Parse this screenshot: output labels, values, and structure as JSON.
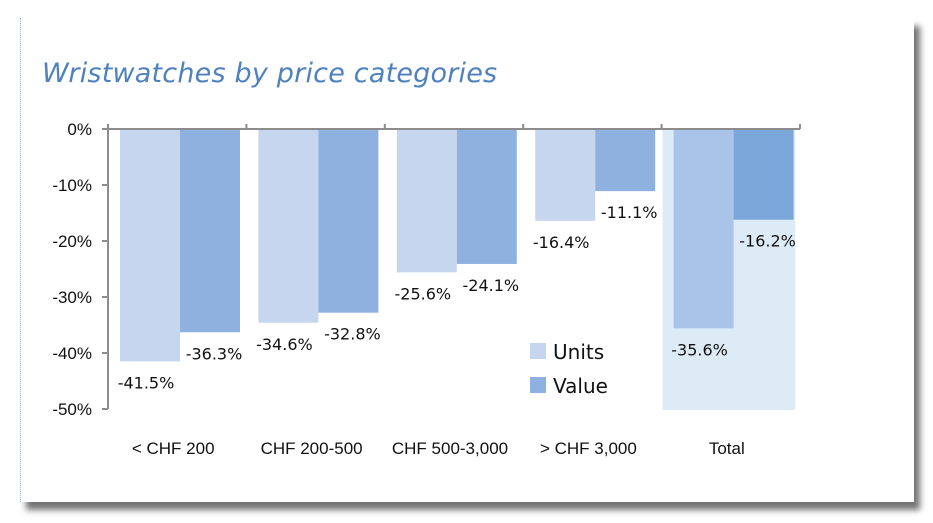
{
  "chart_data": {
    "type": "bar",
    "title": "Wristwatches by price categories",
    "categories": [
      "< CHF 200",
      "CHF 200-500",
      "CHF 500-3,000",
      "> CHF 3,000",
      "Total"
    ],
    "series": [
      {
        "name": "Units",
        "values": [
          -41.5,
          -34.6,
          -25.6,
          -16.4,
          -35.6
        ],
        "color": "#c6d6ee"
      },
      {
        "name": "Value",
        "values": [
          -36.3,
          -32.8,
          -24.1,
          -11.1,
          -16.2
        ],
        "color": "#8eb1df"
      }
    ],
    "data_labels": {
      "Units": [
        "-41.5%",
        "-34.6%",
        "-25.6%",
        "-16.4%",
        "-35.6%"
      ],
      "Value": [
        "-36.3%",
        "-32.8%",
        "-24.1%",
        "-11.1%",
        "-16.2%"
      ]
    },
    "yticks": [
      "0%",
      "-10%",
      "-20%",
      "-30%",
      "-40%",
      "-50%"
    ],
    "ytick_values": [
      0,
      -10,
      -20,
      -30,
      -40,
      -50
    ],
    "ylim": [
      -50,
      0
    ],
    "legend_position": "inside-center",
    "highlight_color": "#ddebf7",
    "total_units_color": "#a9c4e8",
    "total_value_color": "#7aa6da",
    "grid": false
  }
}
